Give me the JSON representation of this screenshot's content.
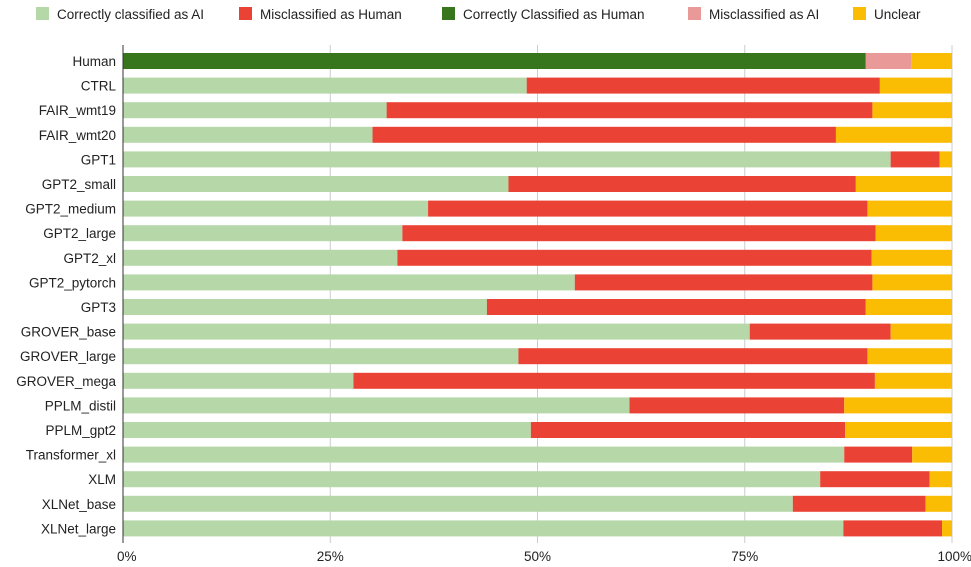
{
  "chart_data": {
    "type": "bar",
    "orientation": "horizontal",
    "stacked": true,
    "grid": true,
    "legend_position": "top",
    "xlim": [
      0,
      100
    ],
    "x_ticks": [
      "0%",
      "25%",
      "50%",
      "75%",
      "100%"
    ],
    "categories": [
      "Human",
      "CTRL",
      "FAIR_wmt19",
      "FAIR_wmt20",
      "GPT1",
      "GPT2_small",
      "GPT2_medium",
      "GPT2_large",
      "GPT2_xl",
      "GPT2_pytorch",
      "GPT3",
      "GROVER_base",
      "GROVER_large",
      "GROVER_mega",
      "PPLM_distil",
      "PPLM_gpt2",
      "Transformer_xl",
      "XLM",
      "XLNet_base",
      "XLNet_large"
    ],
    "series": [
      {
        "name": "Correctly classified as AI",
        "color": "#b6d7a8",
        "values": [
          0,
          48.7,
          31.8,
          30.1,
          92.6,
          46.5,
          36.8,
          33.7,
          33.1,
          54.5,
          43.9,
          75.6,
          47.7,
          27.8,
          61.1,
          49.2,
          87.0,
          84.1,
          80.8,
          86.9
        ]
      },
      {
        "name": "Misclassified as Human",
        "color": "#ea4335",
        "values": [
          0,
          42.6,
          58.6,
          55.9,
          5.9,
          41.9,
          53.0,
          57.1,
          57.2,
          35.9,
          45.7,
          17.0,
          42.1,
          62.9,
          25.9,
          37.9,
          8.2,
          13.2,
          16.0,
          11.9
        ]
      },
      {
        "name": "Correctly Classified as Human",
        "color": "#38761d",
        "values": [
          89.6,
          0,
          0,
          0,
          0,
          0,
          0,
          0,
          0,
          0,
          0,
          0,
          0,
          0,
          0,
          0,
          0,
          0,
          0,
          0
        ]
      },
      {
        "name": "Misclassified as AI",
        "color": "#ea9999",
        "values": [
          5.5,
          0,
          0,
          0,
          0,
          0,
          0,
          0,
          0,
          0,
          0,
          0,
          0,
          0,
          0,
          0,
          0,
          0,
          0,
          0
        ]
      },
      {
        "name": "Unclear",
        "color": "#fbbc04",
        "values": [
          4.9,
          8.7,
          9.6,
          14.0,
          1.5,
          11.6,
          10.2,
          9.2,
          9.7,
          9.6,
          10.4,
          7.4,
          10.2,
          9.3,
          13.0,
          12.9,
          4.8,
          2.7,
          3.2,
          1.2
        ]
      }
    ]
  }
}
